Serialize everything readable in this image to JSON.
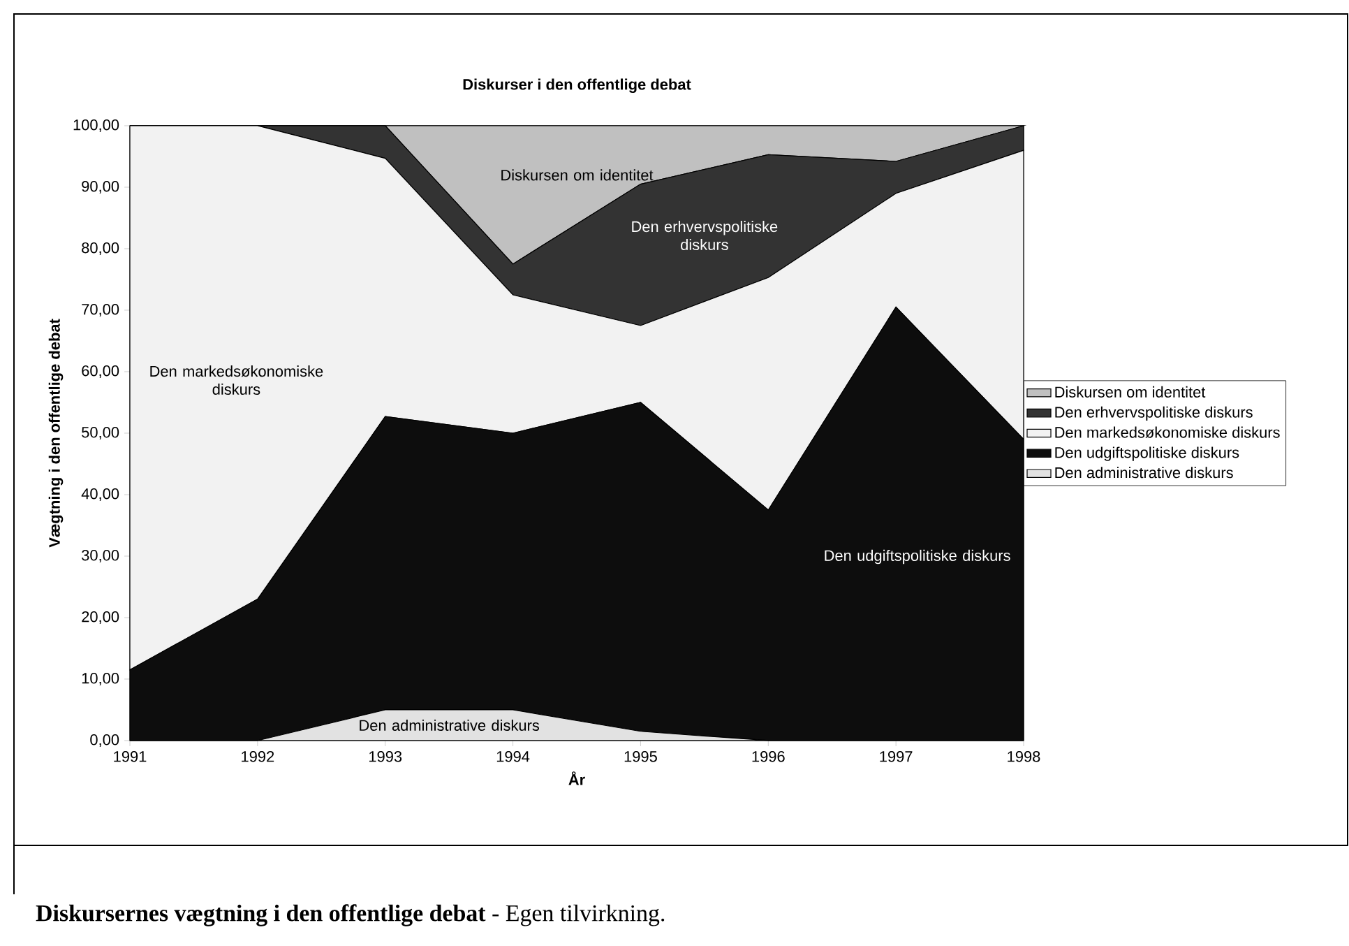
{
  "chart_data": {
    "type": "area",
    "stacked": true,
    "title": "Diskurser i den offentlige debat",
    "xlabel": "År",
    "ylabel": "Vægtning i den offentlige debat",
    "x": [
      1991,
      1992,
      1993,
      1994,
      1995,
      1996,
      1997,
      1998
    ],
    "xlim": [
      1991,
      1998
    ],
    "xticks": [
      1991,
      1992,
      1993,
      1994,
      1995,
      1996,
      1997,
      1998
    ],
    "ylim": [
      0,
      100
    ],
    "yticks": [
      {
        "value": 0,
        "label": "0,00"
      },
      {
        "value": 10,
        "label": "10,00"
      },
      {
        "value": 20,
        "label": "20,00"
      },
      {
        "value": 30,
        "label": "30,00"
      },
      {
        "value": 40,
        "label": "40,00"
      },
      {
        "value": 50,
        "label": "50,00"
      },
      {
        "value": 60,
        "label": "60,00"
      },
      {
        "value": 70,
        "label": "70,00"
      },
      {
        "value": 80,
        "label": "80,00"
      },
      {
        "value": 90,
        "label": "90,00"
      },
      {
        "value": 100,
        "label": "100,00"
      }
    ],
    "series": [
      {
        "name": "Den administrative diskurs",
        "color": "#e2e2e2",
        "values": [
          0,
          0,
          5,
          5,
          1.5,
          0,
          0,
          0
        ]
      },
      {
        "name": "Den udgiftspolitiske diskurs",
        "color": "#0d0d0d",
        "values": [
          11.5,
          23,
          47.7,
          45,
          53.5,
          37.5,
          70.5,
          49
        ]
      },
      {
        "name": "Den markedsøkonomiske diskurs",
        "color": "#f2f2f2",
        "values": [
          88.5,
          77,
          42,
          22.5,
          12.5,
          37.8,
          18.5,
          47
        ]
      },
      {
        "name": "Den erhvervspolitiske diskurs",
        "color": "#333333",
        "values": [
          0,
          0,
          5.3,
          5,
          23,
          20,
          5.2,
          4
        ]
      },
      {
        "name": "Diskursen om identitet",
        "color": "#c0c0c0",
        "values": [
          0,
          0,
          0,
          22.5,
          9.5,
          4.7,
          5.8,
          0
        ]
      }
    ],
    "legend": "right",
    "grid": false,
    "annotations": [
      "**Diskursernes vægtning i den offentlige debat** - Egen tilvirkning."
    ]
  }
}
